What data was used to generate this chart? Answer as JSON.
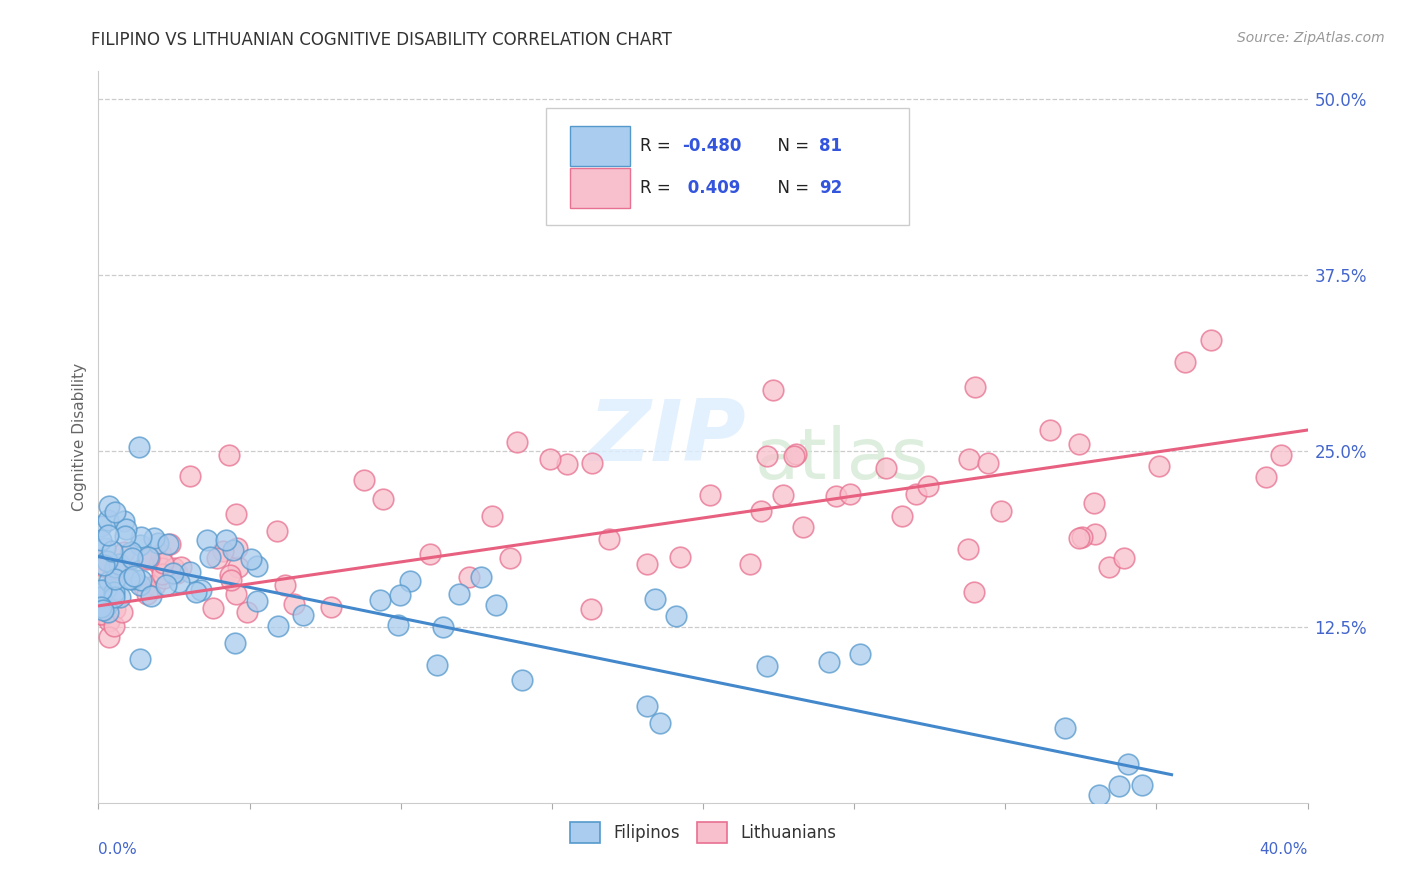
{
  "title": "FILIPINO VS LITHUANIAN COGNITIVE DISABILITY CORRELATION CHART",
  "source": "Source: ZipAtlas.com",
  "ylabel": "Cognitive Disability",
  "right_yticks": [
    0.0,
    0.125,
    0.25,
    0.375,
    0.5
  ],
  "right_yticklabels": [
    "",
    "12.5%",
    "25.0%",
    "37.5%",
    "50.0%"
  ],
  "xlim": [
    0.0,
    0.4
  ],
  "ylim": [
    0.0,
    0.52
  ],
  "color_filipino_fill": "#aaccee",
  "color_filipino_edge": "#5599cc",
  "color_lithuanian_fill": "#f8c0cc",
  "color_lithuanian_edge": "#e87090",
  "color_line_filipino": "#4488cc",
  "color_line_lithuanian": "#e86080",
  "background_color": "#ffffff",
  "grid_color": "#cccccc",
  "fil_line_x0": 0.0,
  "fil_line_y0": 0.175,
  "fil_line_x1": 0.355,
  "fil_line_y1": 0.02,
  "lit_line_x0": 0.0,
  "lit_line_y0": 0.14,
  "lit_line_x1": 0.4,
  "lit_line_y1": 0.265,
  "seed": 42
}
